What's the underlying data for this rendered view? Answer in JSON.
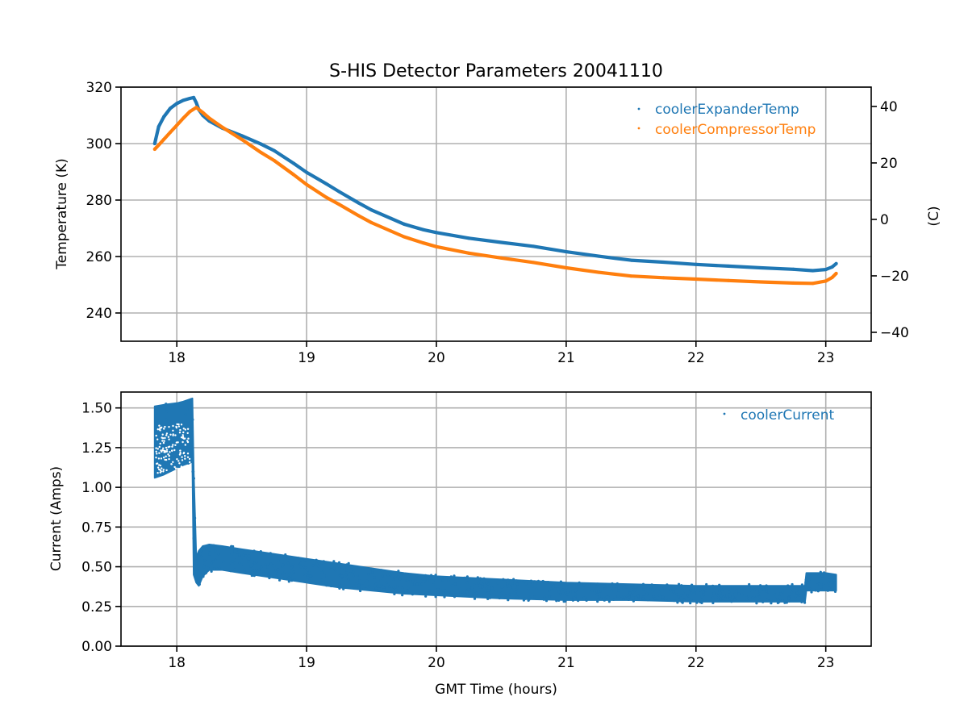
{
  "figure_title": "S-HIS Detector Parameters 20041110",
  "chart_data": [
    {
      "type": "scatter",
      "panel": "top",
      "title": "S-HIS Detector Parameters 20041110",
      "xlabel": "",
      "ylabel": "Temperature (K)",
      "ylabel_right": "(C)",
      "xlim": [
        17.57,
        23.35
      ],
      "ylim": [
        230,
        320
      ],
      "ylim_right": [
        -43.15,
        46.85
      ],
      "xticks": [
        18,
        19,
        20,
        21,
        22,
        23
      ],
      "xtick_labels": [
        "18",
        "19",
        "20",
        "21",
        "22",
        "23"
      ],
      "yticks": [
        240,
        260,
        280,
        300,
        320
      ],
      "ytick_labels": [
        "240",
        "260",
        "280",
        "300",
        "320"
      ],
      "yticks_right": [
        -40,
        -20,
        0,
        20,
        40
      ],
      "ytick_labels_right": [
        "−40",
        "−20",
        "0",
        "20",
        "40"
      ],
      "grid": true,
      "legend_position": "top-right",
      "series": [
        {
          "name": "coolerExpanderTemp",
          "color": "#1f77b4",
          "x": [
            17.83,
            17.86,
            17.9,
            17.95,
            18.0,
            18.05,
            18.1,
            18.13,
            18.15,
            18.17,
            18.2,
            18.25,
            18.35,
            18.5,
            18.65,
            18.75,
            18.9,
            19.0,
            19.15,
            19.25,
            19.4,
            19.5,
            19.65,
            19.75,
            19.9,
            20.0,
            20.25,
            20.5,
            20.75,
            21.0,
            21.25,
            21.5,
            21.75,
            22.0,
            22.25,
            22.5,
            22.75,
            22.9,
            23.0,
            23.05,
            23.08
          ],
          "y": [
            300,
            306,
            309.5,
            312.5,
            314.2,
            315.3,
            316,
            316.3,
            314.5,
            312,
            310,
            308,
            305.5,
            302.8,
            299.8,
            297.5,
            293,
            289.8,
            285.8,
            283,
            279,
            276.5,
            273.5,
            271.5,
            269.5,
            268.5,
            266.5,
            265,
            263.6,
            261.7,
            260.1,
            258.7,
            258,
            257.2,
            256.6,
            256,
            255.5,
            255,
            255.4,
            256.3,
            257.5
          ]
        },
        {
          "name": "coolerCompressorTemp",
          "color": "#ff7f0e",
          "x": [
            17.83,
            17.86,
            17.9,
            17.95,
            18.0,
            18.05,
            18.1,
            18.15,
            18.2,
            18.25,
            18.35,
            18.5,
            18.65,
            18.75,
            18.9,
            19.0,
            19.15,
            19.25,
            19.4,
            19.5,
            19.65,
            19.75,
            19.9,
            20.0,
            20.25,
            20.5,
            20.75,
            21.0,
            21.25,
            21.5,
            21.75,
            22.0,
            22.25,
            22.5,
            22.75,
            22.9,
            23.0,
            23.05,
            23.08
          ],
          "y": [
            298,
            299.5,
            301.5,
            304,
            306.5,
            309,
            311.3,
            312.8,
            311,
            309,
            305.8,
            301.5,
            296.8,
            294,
            289,
            285.5,
            281,
            278.5,
            274.5,
            272,
            269,
            267,
            264.8,
            263.5,
            261.2,
            259.5,
            257.9,
            256,
            254.4,
            253.1,
            252.5,
            252,
            251.5,
            251,
            250.6,
            250.5,
            251.3,
            252.6,
            254
          ]
        }
      ]
    },
    {
      "type": "scatter",
      "panel": "bottom",
      "title": "",
      "xlabel": "GMT Time (hours)",
      "ylabel": "Current (Amps)",
      "xlim": [
        17.57,
        23.35
      ],
      "ylim": [
        0.0,
        1.6
      ],
      "xticks": [
        18,
        19,
        20,
        21,
        22,
        23
      ],
      "xtick_labels": [
        "18",
        "19",
        "20",
        "21",
        "22",
        "23"
      ],
      "yticks": [
        0.0,
        0.25,
        0.5,
        0.75,
        1.0,
        1.25,
        1.5
      ],
      "ytick_labels": [
        "0.00",
        "0.25",
        "0.50",
        "0.75",
        "1.00",
        "1.25",
        "1.50"
      ],
      "grid": true,
      "legend_position": "top-right",
      "series": [
        {
          "name": "coolerCurrent",
          "color": "#1f77b4",
          "band_x": [
            17.83,
            17.9,
            18.0,
            18.05,
            18.12,
            18.13,
            18.15,
            18.17,
            18.2,
            18.25,
            18.35,
            18.5,
            18.75,
            19.0,
            19.25,
            19.5,
            19.75,
            20.0,
            20.5,
            21.0,
            21.5,
            22.0,
            22.5,
            22.84,
            22.85,
            23.0,
            23.08
          ],
          "band_min": [
            1.06,
            1.08,
            1.12,
            1.14,
            1.16,
            0.45,
            0.4,
            0.38,
            0.44,
            0.48,
            0.48,
            0.46,
            0.43,
            0.4,
            0.37,
            0.35,
            0.33,
            0.32,
            0.3,
            0.29,
            0.29,
            0.28,
            0.28,
            0.28,
            0.35,
            0.35,
            0.35
          ],
          "band_max": [
            1.51,
            1.52,
            1.53,
            1.54,
            1.56,
            1.1,
            0.56,
            0.6,
            0.63,
            0.64,
            0.63,
            0.61,
            0.58,
            0.55,
            0.52,
            0.49,
            0.46,
            0.44,
            0.42,
            0.4,
            0.39,
            0.38,
            0.38,
            0.38,
            0.46,
            0.46,
            0.45
          ]
        }
      ]
    }
  ]
}
